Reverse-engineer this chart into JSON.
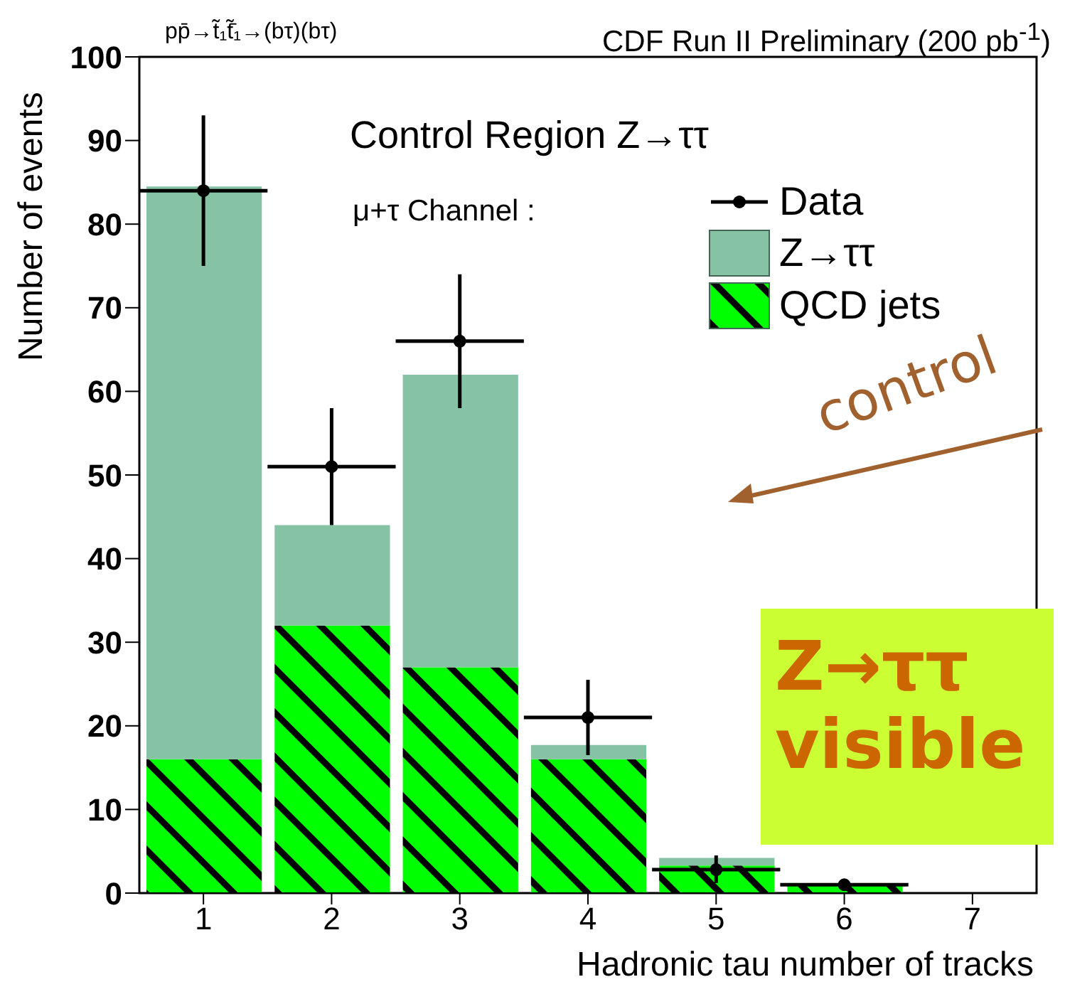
{
  "chart_data": {
    "type": "bar",
    "title": "CDF Run II Preliminary (200 pb$^{-1}$)",
    "subtitle": "pp̄→t̃₁t̃̄₁→(bτ)(bτ)",
    "xlabel": "Hadronic tau number of tracks",
    "ylabel": "Number of events",
    "annotations": [
      "Control Region Z→ττ",
      "μ+τ Channel :",
      "control",
      "Z→ττ visible"
    ],
    "x": [
      1,
      2,
      3,
      4,
      5,
      6,
      7
    ],
    "stacked": true,
    "series": [
      {
        "name": "QCD jets",
        "color": "#00ff00",
        "values": [
          16,
          32,
          27,
          16,
          3.3,
          1,
          0
        ]
      },
      {
        "name": "Z→ττ",
        "color": "#86c3a5",
        "values": [
          68.5,
          12,
          35,
          1.7,
          0.9,
          0,
          0
        ]
      },
      {
        "name": "Data",
        "type": "scatter",
        "color": "#000000",
        "values": [
          84,
          51,
          66,
          21,
          2.8,
          1,
          null
        ],
        "errors": [
          [
            75,
            93
          ],
          [
            44,
            58
          ],
          [
            58,
            74
          ],
          [
            16.5,
            25.5
          ],
          [
            1.2,
            4.5
          ],
          null,
          null
        ],
        "xerrors": [
          0.5,
          0.5,
          0.5,
          0.5,
          0.5,
          0.5,
          null
        ]
      }
    ],
    "xlim": [
      0.5,
      7.5
    ],
    "xticks": [
      1,
      2,
      3,
      4,
      5,
      6,
      7
    ],
    "ylim": [
      0,
      100
    ],
    "yticks": [
      0,
      10,
      20,
      30,
      40,
      50,
      60,
      70,
      80,
      90,
      100
    ],
    "legend": "top right",
    "marker": "circle"
  }
}
